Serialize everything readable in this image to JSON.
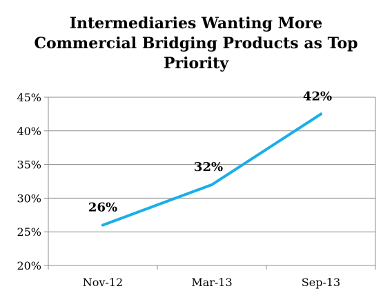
{
  "chart_data": {
    "type": "line",
    "title": "Intermediaries Wanting More Commercial Bridging Products as Top Priority",
    "categories": [
      "Nov-12",
      "Mar-13",
      "Sep-13"
    ],
    "series": [
      {
        "values": [
          26,
          32,
          42.5
        ],
        "data_labels": [
          "26%",
          "32%",
          "42%"
        ],
        "color": "#1aaee8"
      }
    ],
    "ylim": [
      20,
      45
    ],
    "yticks": [
      20,
      25,
      30,
      35,
      40,
      45
    ],
    "ytick_labels": [
      "20%",
      "25%",
      "30%",
      "35%",
      "40%",
      "45%"
    ],
    "grid": true,
    "legend": "none",
    "xlabel": "",
    "ylabel": ""
  }
}
